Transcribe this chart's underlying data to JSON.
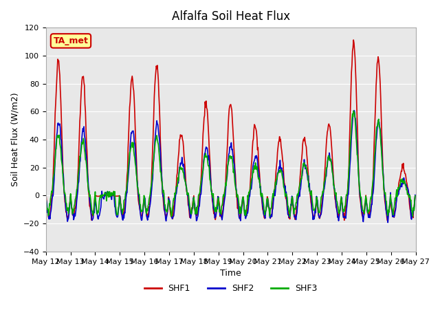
{
  "title": "Alfalfa Soil Heat Flux",
  "xlabel": "Time",
  "ylabel": "Soil Heat Flux (W/m2)",
  "ylim": [
    -40,
    120
  ],
  "yticks": [
    -40,
    -20,
    0,
    20,
    40,
    60,
    80,
    100,
    120
  ],
  "x_start_day": 12,
  "x_end_day": 27,
  "x_tick_days": [
    12,
    13,
    14,
    15,
    16,
    17,
    18,
    19,
    20,
    21,
    22,
    23,
    24,
    25,
    26,
    27
  ],
  "colors": {
    "SHF1": "#cc0000",
    "SHF2": "#0000cc",
    "SHF3": "#00aa00"
  },
  "background_color": "#e8e8e8",
  "legend_label": "TA_met",
  "legend_box_color": "#ffff99",
  "legend_box_edge": "#cc0000"
}
